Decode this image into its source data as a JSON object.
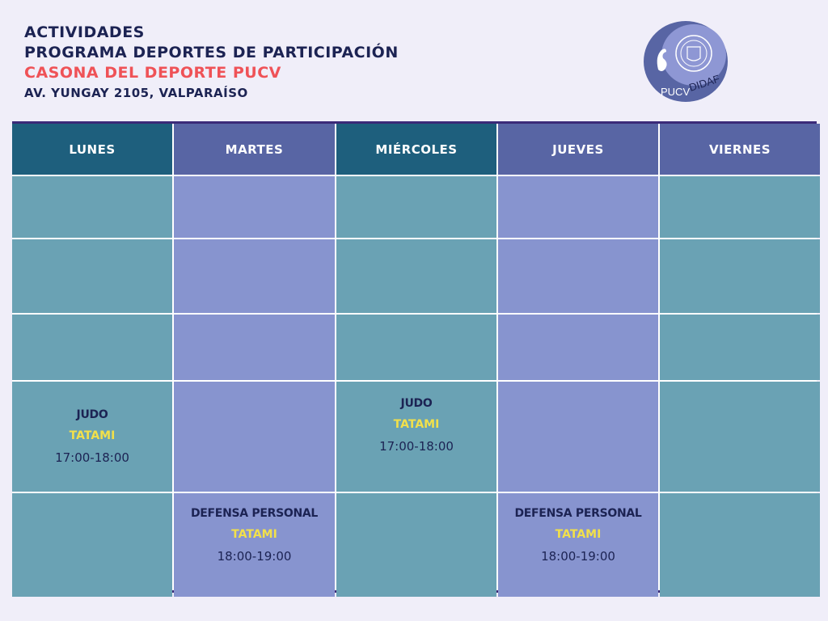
{
  "header": {
    "line1": "ACTIVIDADES",
    "line2": "PROGRAMA DEPORTES DE PARTICIPACIÓN",
    "line3": "CASONA DEL DEPORTE PUCV",
    "line4": "AV. YUNGAY 2105, VALPARAÍSO"
  },
  "logo": {
    "left_text": "PUCV",
    "right_text": "DIDAF"
  },
  "days": [
    "LUNES",
    "MARTES",
    "MIÉRCOLES",
    "JUEVES",
    "VIERNES"
  ],
  "slots": {
    "lunes_judo": {
      "activity": "JUDO",
      "place": "TATAMI",
      "time": "17:00-18:00"
    },
    "miercoles_judo": {
      "activity": "JUDO",
      "place": "TATAMI",
      "time": "17:00-18:00"
    },
    "martes_defensa": {
      "activity": "DEFENSA PERSONAL",
      "place": "TATAMI",
      "time": "18:00-19:00"
    },
    "jueves_defensa": {
      "activity": "DEFENSA PERSONAL",
      "place": "TATAMI",
      "time": "18:00-19:00"
    }
  },
  "colors": {
    "navy": "#1c2353",
    "red": "#ef5257",
    "yellow": "#f2e04a",
    "header_teal": "#1e5f7d",
    "header_blue": "#5865a4",
    "cell_teal": "#6aa2b4",
    "cell_blue": "#8794cf"
  }
}
